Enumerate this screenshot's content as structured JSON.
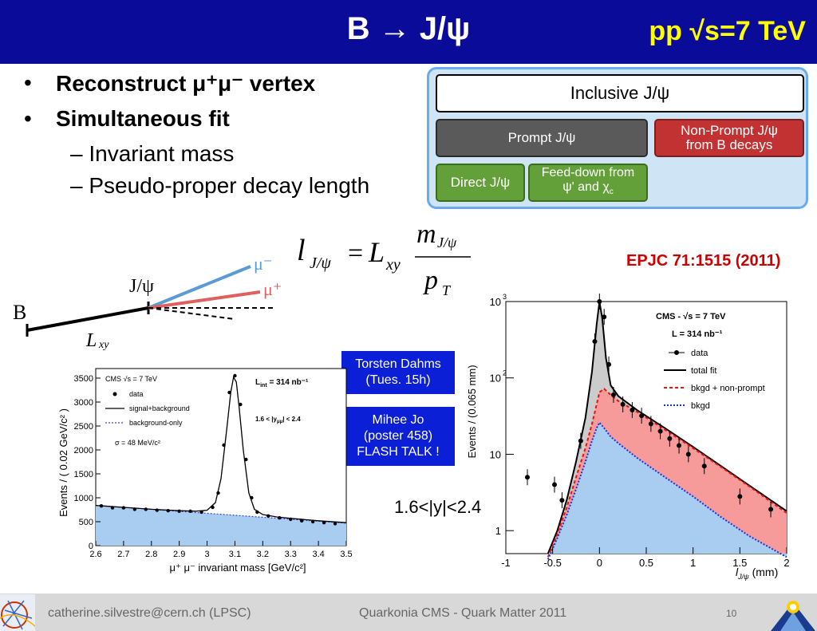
{
  "header": {
    "title": "B → J/ψ",
    "energy": "pp √s=7 TeV"
  },
  "bullets": {
    "b1": "Reconstruct μ⁺μ⁻ vertex",
    "b2": "Simultaneous fit",
    "s1": "Invariant mass",
    "s2": "Pseudo-proper decay length"
  },
  "diagram": {
    "inclusive": "Inclusive J/ψ",
    "prompt": "Prompt J/ψ",
    "nonprompt_line1": "Non-Prompt J/ψ",
    "nonprompt_line2": "from B decays",
    "direct": "Direct J/ψ",
    "feeddown_line1": "Feed-down from",
    "feeddown_line2": "ψ' and χ",
    "feeddown_sub": "c"
  },
  "formula": {
    "l": "l",
    "l_sub": "J/ψ",
    "eq": "=",
    "L": "L",
    "L_sub": "xy",
    "num": "m",
    "num_sub": "J/ψ",
    "den": "p",
    "den_sub": "T"
  },
  "decay_sketch": {
    "B": "B",
    "jpsi": "J/ψ",
    "mu_minus": "μ⁻",
    "mu_plus": "μ⁺",
    "lxy": "L",
    "lxy_sub": "xy"
  },
  "reference": "EPJC 71:1515 (2011)",
  "talks": {
    "t1_line1": "Torsten Dahms",
    "t1_line2": "(Tues. 15h)",
    "t2_line1": "Mihee Jo",
    "t2_line2": "(poster 458)",
    "t2_line3": "FLASH TALK !"
  },
  "rapidity": "1.6<|y|<2.4",
  "footer": {
    "email": "catherine.silvestre@cern.ch (LPSC)",
    "conference": "Quarkonia CMS - Quark Matter 2011",
    "page": "10"
  },
  "chart_data": [
    {
      "type": "line",
      "title": "",
      "xlabel": "μ⁺ μ⁻ invariant mass [GeV/c²]",
      "ylabel": "Events / ( 0.02 GeV/c² )",
      "xlim": [
        2.6,
        3.5
      ],
      "ylim": [
        0,
        3700
      ],
      "xticks": [
        "2.6",
        "2.7",
        "2.8",
        "2.9",
        "3",
        "3.1",
        "3.2",
        "3.3",
        "3.4",
        "3.5"
      ],
      "yticks": [
        "0",
        "500",
        "1000",
        "1500",
        "2000",
        "2500",
        "3000",
        "3500"
      ],
      "legend": {
        "title": "CMS √s = 7 TeV",
        "lumi": "L",
        "lumi_sub": "int",
        "lumi_val": " = 314 nb⁻¹",
        "data": "data",
        "fit": "signal+background",
        "bkg": "background-only",
        "cut": "1.6 < |y",
        "cut_sub": "μμ",
        "cut_end": "| < 2.4",
        "sigma": "σ = 48 MeV/c²"
      },
      "series": [
        {
          "name": "data",
          "x": [
            2.62,
            2.66,
            2.7,
            2.74,
            2.78,
            2.82,
            2.86,
            2.9,
            2.94,
            2.98,
            3.02,
            3.04,
            3.06,
            3.08,
            3.1,
            3.12,
            3.14,
            3.16,
            3.18,
            3.22,
            3.26,
            3.3,
            3.34,
            3.38,
            3.42,
            3.46
          ],
          "y": [
            830,
            790,
            790,
            760,
            760,
            740,
            730,
            720,
            720,
            700,
            800,
            1100,
            2100,
            3200,
            3550,
            2950,
            1800,
            1000,
            700,
            620,
            580,
            550,
            520,
            500,
            480,
            460
          ]
        },
        {
          "name": "signal+background",
          "x": [
            2.6,
            2.7,
            2.8,
            2.9,
            2.96,
            3.0,
            3.03,
            3.05,
            3.07,
            3.085,
            3.095,
            3.105,
            3.115,
            3.13,
            3.15,
            3.17,
            3.2,
            3.25,
            3.3,
            3.4,
            3.5
          ],
          "y": [
            840,
            800,
            760,
            730,
            720,
            740,
            900,
            1400,
            2400,
            3200,
            3520,
            3420,
            2900,
            2000,
            1100,
            760,
            650,
            600,
            570,
            520,
            480
          ]
        },
        {
          "name": "background-only",
          "x": [
            2.6,
            3.5
          ],
          "y": [
            840,
            470
          ]
        }
      ]
    },
    {
      "type": "line",
      "title": "",
      "xlabel": "l",
      "xlabel_sub": "J/ψ",
      "xlabel_unit": " (mm)",
      "ylabel": "Events / (0.065 mm)",
      "log_y": true,
      "xlim": [
        -1,
        2
      ],
      "ylim": [
        0.5,
        1000
      ],
      "xticks": [
        "-1",
        "-0.5",
        "0",
        "0.5",
        "1",
        "1.5",
        "2"
      ],
      "ytick_labels": {
        "t1": "1",
        "t10": "10",
        "t100": "10",
        "t100_exp": "2",
        "t1000": "10",
        "t1000_exp": "3"
      },
      "legend": {
        "title": "CMS - √s = 7 TeV",
        "lumi": "L = 314 nb⁻¹",
        "data": "data",
        "fit": "total fit",
        "nonprompt": "bkgd + non-prompt",
        "bkg": "bkgd"
      },
      "series": [
        {
          "name": "data",
          "x": [
            -0.4,
            -0.2,
            -0.05,
            0.0,
            0.05,
            0.1,
            0.15,
            0.25,
            0.35,
            0.45,
            0.55,
            0.65,
            0.75,
            0.85,
            0.95,
            1.12,
            1.5,
            1.83,
            -0.48,
            -0.77
          ],
          "y": [
            2.5,
            15,
            300,
            1000,
            630,
            150,
            60,
            45,
            38,
            32,
            25,
            20,
            16,
            13,
            10,
            7,
            2.8,
            1.9,
            4.0,
            5.0
          ]
        },
        {
          "name": "total fit",
          "x": [
            -0.55,
            -0.45,
            -0.35,
            -0.25,
            -0.15,
            -0.08,
            -0.03,
            0.0,
            0.03,
            0.07,
            0.12,
            0.2,
            0.4,
            0.7,
            1.0,
            1.3,
            1.6,
            2.0
          ],
          "y": [
            0.5,
            1.0,
            2.5,
            8,
            30,
            120,
            500,
            1000,
            600,
            180,
            80,
            58,
            38,
            22,
            12.5,
            7,
            3.9,
            1.8
          ]
        },
        {
          "name": "bkgd + non-prompt",
          "x": [
            -0.55,
            -0.45,
            -0.35,
            -0.25,
            -0.15,
            -0.08,
            -0.03,
            0.0,
            0.05,
            0.12,
            0.2,
            0.4,
            0.7,
            1.0,
            1.3,
            1.6,
            2.0
          ],
          "y": [
            0.45,
            0.9,
            2.0,
            5,
            12,
            25,
            45,
            65,
            72,
            60,
            50,
            36,
            21,
            12,
            6.8,
            3.8,
            1.7
          ]
        },
        {
          "name": "bkgd",
          "x": [
            -0.55,
            -0.45,
            -0.35,
            -0.25,
            -0.15,
            -0.08,
            -0.03,
            0.0,
            0.05,
            0.12,
            0.2,
            0.4,
            0.7,
            1.0,
            1.3,
            1.6,
            2.0
          ],
          "y": [
            0.42,
            0.8,
            1.6,
            3.5,
            8,
            15,
            22,
            26,
            22,
            17,
            14,
            9,
            5,
            2.8,
            1.5,
            0.85,
            0.45
          ]
        }
      ]
    }
  ]
}
